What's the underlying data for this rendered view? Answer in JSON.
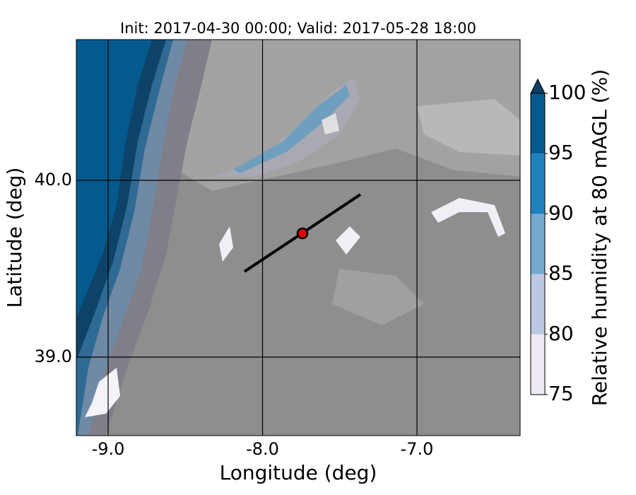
{
  "chart_data": {
    "type": "contour",
    "title": "Init: 2017-04-30 00:00; Valid: 2017-05-28 18:00",
    "x_label": "Longitude (deg)",
    "y_label": "Latitude (deg)",
    "xlim": [
      -9.206,
      -6.332
    ],
    "ylim": [
      38.556,
      40.796
    ],
    "xticks": [
      {
        "value": -9,
        "label": "-9.0"
      },
      {
        "value": -8,
        "label": "-8.0"
      },
      {
        "value": -7,
        "label": "-7.0"
      }
    ],
    "yticks": [
      {
        "value": 39,
        "label": "39.0"
      },
      {
        "value": 40,
        "label": "40.0"
      }
    ],
    "grid": true,
    "colorbar": {
      "label": "Relative humidity at 80 mAGL (%)",
      "clim": [
        75,
        100
      ],
      "ticks": [
        75,
        80,
        85,
        90,
        95,
        100
      ],
      "colors": [
        "#efe9f3",
        "#bcc7e1",
        "#74a9cf",
        "#1f82be",
        "#045a8d"
      ],
      "extend": "max",
      "extend_color": "#0b3f63"
    }
  }
}
